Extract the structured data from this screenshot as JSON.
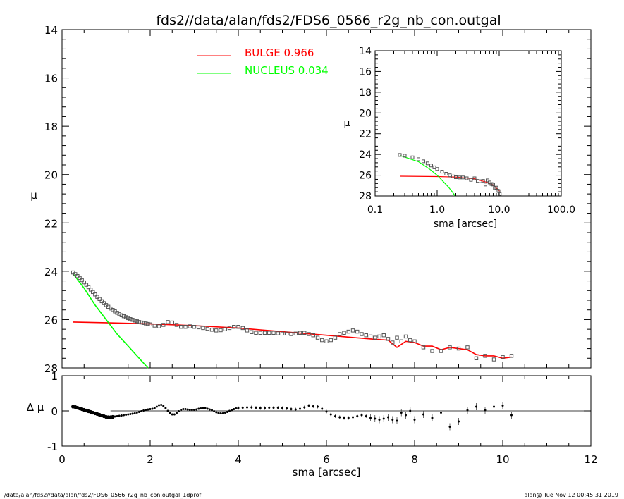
{
  "chart_data": [
    {
      "type": "scatter",
      "panel": "main",
      "title": "fds2//data/alan/fds2/FDS6_0566_r2g_nb_con.outgal",
      "xlabel": "",
      "ylabel": "μ",
      "xlim": [
        0,
        12
      ],
      "ylim": [
        28,
        14
      ],
      "y_inverted": true,
      "xticks": [
        "0",
        "2",
        "4",
        "6",
        "8",
        "10",
        "12"
      ],
      "yticks": [
        "14",
        "16",
        "18",
        "20",
        "22",
        "24",
        "26",
        "28"
      ],
      "legend_position": "top-center",
      "series": [
        {
          "name": "BULGE",
          "label_value": "0.966",
          "color": "#ff0000",
          "style": "line",
          "x": [
            0.25,
            1.0,
            2.0,
            3.0,
            4.0,
            5.0,
            6.0,
            7.0,
            7.4,
            7.6,
            7.8,
            8.0,
            8.2,
            8.4,
            8.6,
            8.8,
            9.0,
            9.2,
            9.4,
            9.6,
            9.8,
            10.0,
            10.2
          ],
          "y": [
            26.1,
            26.13,
            26.18,
            26.25,
            26.35,
            26.5,
            26.65,
            26.8,
            26.85,
            27.15,
            26.9,
            26.95,
            27.1,
            27.1,
            27.25,
            27.15,
            27.2,
            27.25,
            27.45,
            27.5,
            27.5,
            27.6,
            27.55
          ]
        },
        {
          "name": "NUCLEUS",
          "label_value": "0.034",
          "color": "#00ff00",
          "style": "line",
          "x": [
            0.25,
            0.5,
            0.75,
            1.0,
            1.25,
            1.5,
            1.75,
            1.95
          ],
          "y": [
            24.1,
            24.7,
            25.4,
            26.0,
            26.6,
            27.1,
            27.6,
            28.0
          ]
        },
        {
          "name": "data",
          "color": "#555555",
          "style": "points",
          "x": [
            0.25,
            0.3,
            0.35,
            0.4,
            0.45,
            0.5,
            0.55,
            0.6,
            0.65,
            0.7,
            0.75,
            0.8,
            0.85,
            0.9,
            0.95,
            1.0,
            1.05,
            1.1,
            1.15,
            1.2,
            1.25,
            1.3,
            1.35,
            1.4,
            1.45,
            1.5,
            1.55,
            1.6,
            1.65,
            1.7,
            1.75,
            1.8,
            1.85,
            1.9,
            1.95,
            2.0,
            2.1,
            2.2,
            2.3,
            2.4,
            2.5,
            2.6,
            2.7,
            2.8,
            2.9,
            3.0,
            3.1,
            3.2,
            3.3,
            3.4,
            3.5,
            3.6,
            3.7,
            3.8,
            3.9,
            4.0,
            4.1,
            4.2,
            4.3,
            4.4,
            4.5,
            4.6,
            4.7,
            4.8,
            4.9,
            5.0,
            5.1,
            5.2,
            5.3,
            5.4,
            5.5,
            5.6,
            5.7,
            5.8,
            5.9,
            6.0,
            6.1,
            6.2,
            6.3,
            6.4,
            6.5,
            6.6,
            6.7,
            6.8,
            6.9,
            7.0,
            7.1,
            7.2,
            7.3,
            7.4,
            7.5,
            7.6,
            7.7,
            7.8,
            7.9,
            8.0,
            8.2,
            8.4,
            8.6,
            8.8,
            9.0,
            9.2,
            9.4,
            9.6,
            9.8,
            10.0,
            10.2
          ],
          "y": [
            24.05,
            24.12,
            24.2,
            24.28,
            24.37,
            24.46,
            24.56,
            24.66,
            24.76,
            24.86,
            24.96,
            25.06,
            25.15,
            25.24,
            25.32,
            25.4,
            25.47,
            25.54,
            25.6,
            25.66,
            25.72,
            25.77,
            25.82,
            25.86,
            25.9,
            25.94,
            25.98,
            26.01,
            26.04,
            26.07,
            26.1,
            26.12,
            26.14,
            26.16,
            26.18,
            26.2,
            26.25,
            26.28,
            26.22,
            26.1,
            26.12,
            26.22,
            26.3,
            26.3,
            26.28,
            26.3,
            26.32,
            26.35,
            26.38,
            26.42,
            26.45,
            26.44,
            26.4,
            26.35,
            26.3,
            26.3,
            26.35,
            26.45,
            26.52,
            26.55,
            26.55,
            26.55,
            26.55,
            26.55,
            26.57,
            26.58,
            26.58,
            26.6,
            26.58,
            26.55,
            26.55,
            26.6,
            26.65,
            26.75,
            26.85,
            26.9,
            26.85,
            26.75,
            26.6,
            26.55,
            26.5,
            26.45,
            26.5,
            26.6,
            26.65,
            26.7,
            26.75,
            26.7,
            26.65,
            26.8,
            26.95,
            26.75,
            26.9,
            26.7,
            26.85,
            26.9,
            27.15,
            27.3,
            27.3,
            27.15,
            27.2,
            27.15,
            27.6,
            27.5,
            27.65,
            27.55,
            27.5
          ]
        }
      ]
    },
    {
      "type": "scatter",
      "panel": "residual",
      "xlabel": "sma [arcsec]",
      "ylabel": "Δ μ",
      "xlim": [
        0,
        12
      ],
      "ylim": [
        -1,
        1
      ],
      "xticks": [
        "0",
        "2",
        "4",
        "6",
        "8",
        "10",
        "12"
      ],
      "yticks": [
        "-1",
        "0",
        "1"
      ],
      "series": [
        {
          "name": "residuals",
          "x": [
            0.25,
            0.3,
            0.35,
            0.4,
            0.45,
            0.5,
            0.55,
            0.6,
            0.65,
            0.7,
            0.75,
            0.8,
            0.85,
            0.9,
            0.95,
            1.0,
            1.05,
            1.1,
            1.15,
            1.2,
            1.25,
            1.3,
            1.35,
            1.4,
            1.45,
            1.5,
            1.55,
            1.6,
            1.65,
            1.7,
            1.75,
            1.8,
            1.85,
            1.9,
            1.95,
            2.0,
            2.05,
            2.1,
            2.15,
            2.2,
            2.25,
            2.3,
            2.35,
            2.4,
            2.45,
            2.5,
            2.55,
            2.6,
            2.65,
            2.7,
            2.75,
            2.8,
            2.85,
            2.9,
            2.95,
            3.0,
            3.05,
            3.1,
            3.15,
            3.2,
            3.25,
            3.3,
            3.35,
            3.4,
            3.45,
            3.5,
            3.55,
            3.6,
            3.65,
            3.7,
            3.75,
            3.8,
            3.85,
            3.9,
            3.95,
            4.0,
            4.1,
            4.2,
            4.3,
            4.4,
            4.5,
            4.6,
            4.7,
            4.8,
            4.9,
            5.0,
            5.1,
            5.2,
            5.3,
            5.4,
            5.5,
            5.6,
            5.7,
            5.8,
            5.9,
            6.0,
            6.1,
            6.2,
            6.3,
            6.4,
            6.5,
            6.6,
            6.7,
            6.8,
            6.9,
            7.0,
            7.1,
            7.2,
            7.3,
            7.4,
            7.5,
            7.6,
            7.7,
            7.8,
            7.9,
            8.0,
            8.2,
            8.4,
            8.6,
            8.8,
            9.0,
            9.2,
            9.4,
            9.6,
            9.8,
            10.0,
            10.2
          ],
          "y": [
            0.12,
            0.11,
            0.09,
            0.07,
            0.05,
            0.03,
            0.01,
            -0.01,
            -0.03,
            -0.05,
            -0.07,
            -0.09,
            -0.11,
            -0.13,
            -0.15,
            -0.17,
            -0.18,
            -0.18,
            -0.17,
            -0.16,
            -0.15,
            -0.14,
            -0.13,
            -0.12,
            -0.11,
            -0.1,
            -0.09,
            -0.08,
            -0.07,
            -0.05,
            -0.03,
            -0.01,
            0.01,
            0.03,
            0.04,
            0.05,
            0.06,
            0.08,
            0.12,
            0.16,
            0.17,
            0.14,
            0.08,
            0.0,
            -0.06,
            -0.1,
            -0.1,
            -0.06,
            -0.01,
            0.03,
            0.05,
            0.05,
            0.04,
            0.03,
            0.03,
            0.03,
            0.04,
            0.06,
            0.07,
            0.08,
            0.08,
            0.06,
            0.04,
            0.02,
            -0.01,
            -0.04,
            -0.06,
            -0.07,
            -0.07,
            -0.05,
            -0.03,
            0.0,
            0.02,
            0.05,
            0.07,
            0.08,
            0.09,
            0.1,
            0.1,
            0.09,
            0.08,
            0.08,
            0.09,
            0.09,
            0.09,
            0.08,
            0.07,
            0.05,
            0.04,
            0.06,
            0.1,
            0.15,
            0.13,
            0.12,
            0.06,
            -0.02,
            -0.1,
            -0.15,
            -0.18,
            -0.2,
            -0.2,
            -0.18,
            -0.15,
            -0.12,
            -0.15,
            -0.2,
            -0.22,
            -0.25,
            -0.22,
            -0.18,
            -0.25,
            -0.28,
            -0.05,
            -0.12,
            0.0,
            -0.25,
            -0.1,
            -0.2,
            -0.05,
            -0.45,
            -0.3,
            0.02,
            0.12,
            0.02,
            0.12,
            0.15,
            -0.12
          ]
        }
      ]
    },
    {
      "type": "scatter",
      "panel": "inset",
      "xlabel": "sma [arcsec]",
      "ylabel": "μ",
      "x_scale": "log",
      "xlim": [
        0.1,
        100
      ],
      "ylim": [
        28,
        14
      ],
      "xticks": [
        "0.1",
        "1.0",
        "10.0",
        "100.0"
      ],
      "yticks": [
        "14",
        "16",
        "18",
        "20",
        "22",
        "24",
        "26",
        "28"
      ],
      "series": [
        {
          "name": "BULGE",
          "color": "#ff0000",
          "style": "line",
          "x": [
            0.25,
            1.0,
            2.0,
            4.0,
            6.0,
            8.0,
            10.2
          ],
          "y": [
            26.1,
            26.13,
            26.18,
            26.35,
            26.65,
            26.95,
            27.55
          ]
        },
        {
          "name": "NUCLEUS",
          "color": "#00ff00",
          "style": "line",
          "x": [
            0.25,
            0.5,
            0.75,
            1.0,
            1.25,
            1.5,
            1.75,
            1.95
          ],
          "y": [
            24.1,
            24.7,
            25.4,
            26.0,
            26.6,
            27.1,
            27.6,
            28.0
          ]
        },
        {
          "name": "data",
          "color": "#555555",
          "style": "points",
          "x": [
            0.25,
            0.3,
            0.4,
            0.5,
            0.6,
            0.7,
            0.8,
            0.9,
            1.0,
            1.2,
            1.4,
            1.6,
            1.8,
            2.0,
            2.3,
            2.6,
            3.0,
            3.5,
            4.0,
            4.5,
            5.0,
            5.5,
            6.0,
            6.5,
            7.0,
            7.5,
            8.0,
            8.5,
            9.0,
            9.5,
            10.0,
            10.2
          ],
          "y": [
            24.05,
            24.12,
            24.28,
            24.46,
            24.66,
            24.86,
            25.06,
            25.24,
            25.4,
            25.66,
            25.86,
            26.01,
            26.12,
            26.2,
            26.22,
            26.22,
            26.3,
            26.45,
            26.3,
            26.55,
            26.58,
            26.55,
            26.9,
            26.5,
            26.7,
            26.85,
            26.9,
            27.25,
            27.2,
            27.5,
            27.55,
            27.8
          ]
        }
      ]
    }
  ],
  "labels": {
    "title": "fds2//data/alan/fds2/FDS6_0566_r2g_nb_con.outgal",
    "main_ylabel": "μ",
    "resid_ylabel": "Δ μ",
    "xlabel": "sma [arcsec]",
    "inset_ylabel": "μ",
    "inset_xlabel": "sma [arcsec]",
    "legend_bulge": "BULGE  0.966",
    "legend_nucleus": "NUCLEUS  0.034",
    "footer_left": "/data/alan/fds2//data/alan/fds2/FDS6_0566_r2g_nb_con.outgal_1dprof",
    "footer_right": "alan@  Tue Nov 12 00:45:31 2019"
  },
  "colors": {
    "bulge": "#ff0000",
    "nucleus": "#00ff00",
    "data": "#555555",
    "axes": "#000000"
  }
}
